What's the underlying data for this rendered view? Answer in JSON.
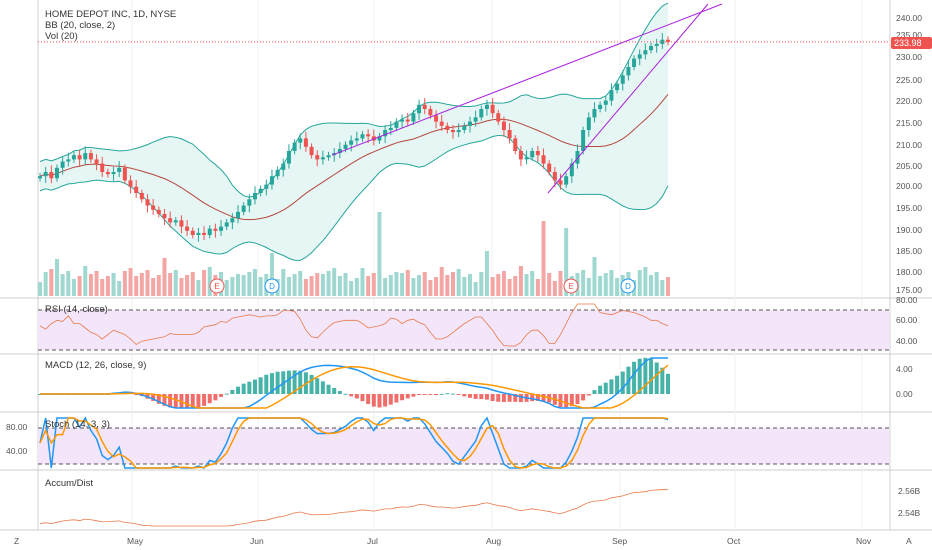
{
  "legend": {
    "symbol": "HOME DEPOT INC, 1D, NYSE",
    "bb": "BB (20, close, 2)",
    "vol": "Vol (20)",
    "rsi": "RSI (14, close)",
    "macd": "MACD (12, 26, close, 9)",
    "stoch": "Stoch (14, 3, 3)",
    "ad": "Accum/Dist"
  },
  "price_label": "233.98",
  "price_axis": [
    "240.00",
    "235.00",
    "230.00",
    "225.00",
    "220.00",
    "215.00",
    "210.00",
    "205.00",
    "200.00",
    "195.00",
    "190.00",
    "185.00",
    "180.00",
    "175.00"
  ],
  "rsi_axis": [
    "80.00",
    "60.00",
    "40.00"
  ],
  "macd_axis": [
    "4.00",
    "0.00"
  ],
  "stoch_axis": [
    "80.00",
    "40.00"
  ],
  "ad_axis": [
    "2.56B",
    "2.54B"
  ],
  "time_axis": [
    "May",
    "Jun",
    "Jul",
    "Aug",
    "Sep",
    "Oct",
    "Nov"
  ],
  "events": [
    "E",
    "D",
    "E",
    "D"
  ],
  "corner_left": "Z",
  "corner_right": "A",
  "colors": {
    "up": "#26a69a",
    "down": "#ef5350",
    "bb_fill": "#e6f6f4",
    "bb_line": "#26a69a",
    "basis": "#b5473b",
    "wedge": "#aa22dd",
    "macd": "#2196f3",
    "signal": "#ff9800",
    "rsi": "#e87a49",
    "ad": "#e87a49",
    "band_fill": "#f3e5fa"
  },
  "chart_data": {
    "type": "candlestick",
    "title": "HOME DEPOT INC, 1D, NYSE",
    "last_price": 233.98,
    "ylim": [
      173,
      243
    ],
    "price_path": [
      202,
      203,
      201.5,
      204,
      205.5,
      206,
      207,
      206,
      207.5,
      206,
      205,
      203,
      202.5,
      203,
      204,
      201,
      199.5,
      198,
      196.5,
      195,
      194,
      193,
      192,
      191,
      191.5,
      190,
      189,
      188,
      188.5,
      188,
      189.5,
      189,
      190,
      191,
      192,
      193.5,
      195,
      196.5,
      198,
      199,
      200,
      202,
      203.5,
      205,
      208,
      210,
      211,
      209,
      207,
      206,
      206.5,
      207,
      207.5,
      208.5,
      209.5,
      210.5,
      211,
      212,
      211.5,
      210.5,
      211.5,
      213,
      213.5,
      215,
      215.5,
      215,
      217,
      219,
      218,
      216.5,
      215,
      214,
      213,
      212.5,
      213,
      214,
      215,
      216,
      218,
      219,
      217,
      215,
      213,
      211,
      208,
      206,
      206.5,
      208,
      207,
      205,
      203,
      201,
      200,
      202,
      205,
      208,
      213,
      216,
      218,
      219,
      220,
      222.5,
      224,
      226,
      228,
      230,
      231,
      232,
      233,
      233.5,
      234.5,
      233.98
    ]
  }
}
